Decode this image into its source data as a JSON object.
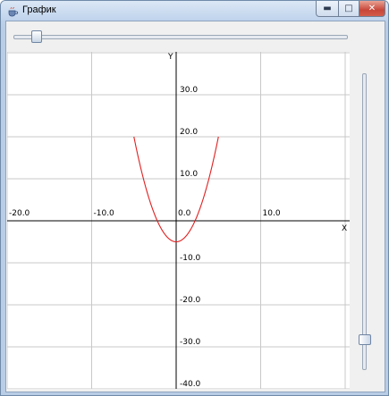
{
  "window": {
    "title": "График",
    "icon": "java-cup-icon",
    "controls": {
      "minimize": "▬",
      "maximize": "□",
      "close": "✕"
    }
  },
  "sliders": {
    "horizontal": {
      "value_fraction": 0.04
    },
    "vertical": {
      "value_fraction": 0.1
    }
  },
  "chart_data": {
    "type": "line",
    "xlabel": "X",
    "ylabel": "Y",
    "xlim": [
      -20,
      20
    ],
    "ylim": [
      -40,
      40
    ],
    "grid": true,
    "xticks": [
      -20,
      -10,
      0,
      10
    ],
    "xtick_labels": [
      "-20.0",
      "-10.0",
      "0.0",
      "10.0"
    ],
    "yticks": [
      30,
      20,
      10,
      -10,
      -20,
      -30,
      -40
    ],
    "ytick_labels": [
      "30.0",
      "20.0",
      "10.0",
      "-10.0",
      "-20.0",
      "-30.0",
      "-40.0"
    ],
    "series": [
      {
        "color": "#e02020",
        "function": "y = x^2 - 5",
        "x_range": [
          -5,
          5
        ]
      }
    ]
  }
}
